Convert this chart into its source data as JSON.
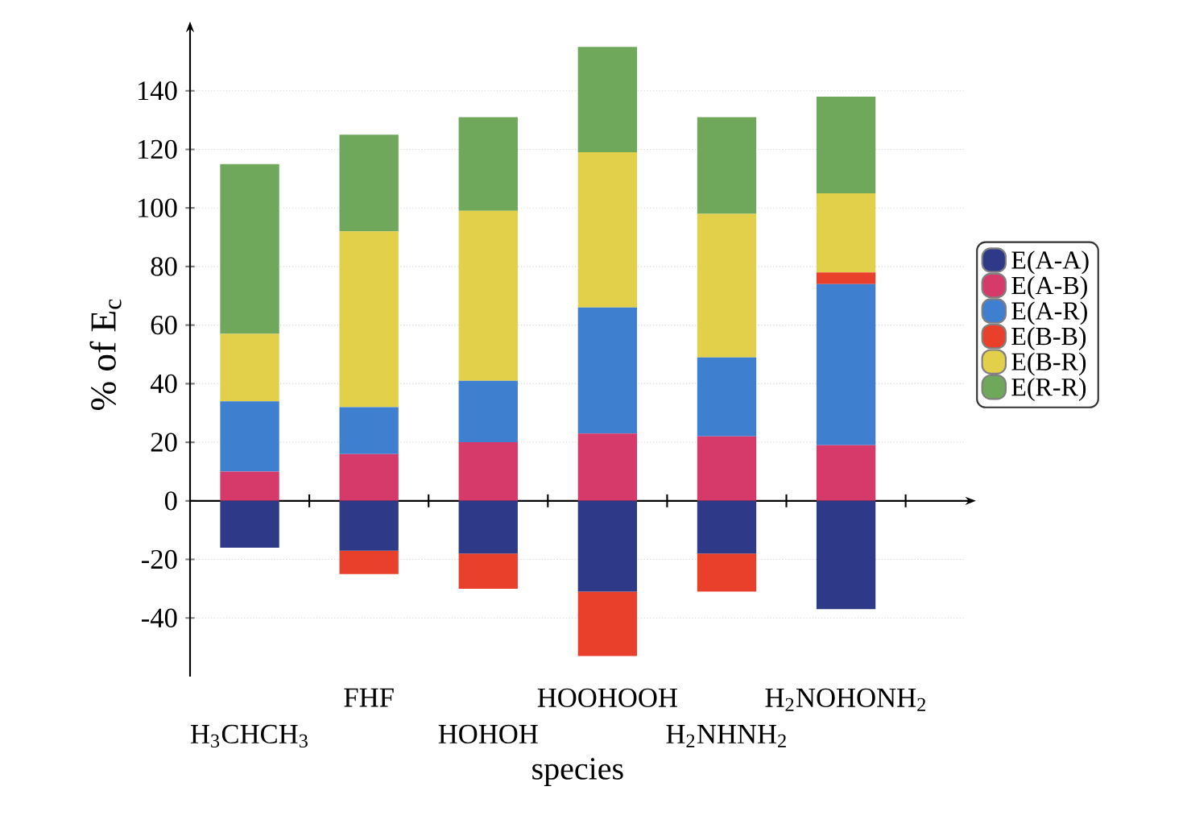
{
  "chart_data": {
    "type": "bar",
    "stacked": true,
    "xlabel": "species",
    "ylabel": "% of E$_{c}$",
    "categories": [
      "H$_{3}$CHCH$_{3}$",
      "FHF",
      "HOHOH",
      "HOOHOOH",
      "H$_{2}$NHNH$_{2}$",
      "H$_{2}$NOHONH$_{2}$"
    ],
    "series": [
      {
        "name": "E(A-A)",
        "color": "#2e3a87",
        "values": [
          -16,
          -17,
          -18,
          -31,
          -18,
          -37
        ]
      },
      {
        "name": "E(A-B)",
        "color": "#d63a6a",
        "values": [
          10,
          16,
          20,
          23,
          22,
          19
        ]
      },
      {
        "name": "E(A-R)",
        "color": "#3f7fd0",
        "values": [
          24,
          16,
          21,
          43,
          27,
          55
        ]
      },
      {
        "name": "E(B-B)",
        "color": "#e8402a",
        "values": [
          0,
          -8,
          -12,
          -22,
          -13,
          4
        ]
      },
      {
        "name": "E(B-R)",
        "color": "#e2cf4a",
        "values": [
          23,
          60,
          58,
          53,
          49,
          27
        ]
      },
      {
        "name": "E(R-R)",
        "color": "#6fa85a",
        "values": [
          58,
          33,
          32,
          36,
          33,
          33
        ]
      }
    ],
    "ylim": [
      -60,
      160
    ],
    "yticks": [
      -40,
      -20,
      0,
      20,
      40,
      60,
      80,
      100,
      120,
      140
    ],
    "grid": "y",
    "legend": "right"
  }
}
